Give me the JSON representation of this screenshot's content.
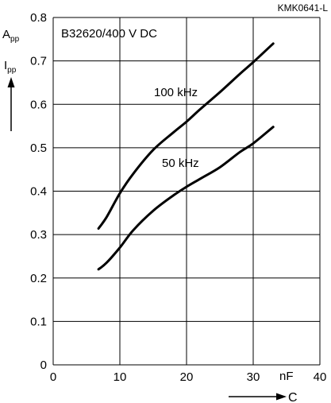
{
  "header": {
    "doc_code": "KMK0641-L",
    "plot_title": "B32620/400 V DC"
  },
  "axes": {
    "y_symbol": "I",
    "y_symbol_sub": "pp",
    "y_unit": "A",
    "y_unit_sub": "pp",
    "x_unit": "nF",
    "x_symbol": "C"
  },
  "chart_data": {
    "type": "line",
    "title": "B32620/400 V DC",
    "xlabel": "C",
    "x_unit": "nF",
    "ylabel": "Ipp",
    "y_unit": "App",
    "xlim": [
      0,
      40
    ],
    "ylim": [
      0,
      0.8
    ],
    "x_ticks": [
      0,
      10,
      20,
      30,
      40
    ],
    "y_ticks": [
      0,
      0.1,
      0.2,
      0.3,
      0.4,
      0.5,
      0.6,
      0.7,
      0.8
    ],
    "x_tick_labels": [
      "0",
      "10",
      "20",
      "30",
      "40"
    ],
    "y_tick_labels": [
      "0",
      "0.1",
      "0.2",
      "0.3",
      "0.4",
      "0.5",
      "0.6",
      "0.7",
      "0.8"
    ],
    "grid": true,
    "series": [
      {
        "name": "100 kHz",
        "x": [
          6.8,
          8,
          10,
          12,
          15,
          18,
          20,
          22,
          25,
          28,
          30,
          33
        ],
        "y": [
          0.314,
          0.34,
          0.395,
          0.44,
          0.495,
          0.535,
          0.56,
          0.588,
          0.628,
          0.67,
          0.697,
          0.74
        ]
      },
      {
        "name": "50 kHz",
        "x": [
          6.8,
          8,
          10,
          12,
          15,
          18,
          20,
          22,
          25,
          28,
          30,
          33
        ],
        "y": [
          0.22,
          0.235,
          0.27,
          0.31,
          0.355,
          0.39,
          0.41,
          0.428,
          0.455,
          0.49,
          0.51,
          0.548
        ]
      }
    ]
  }
}
